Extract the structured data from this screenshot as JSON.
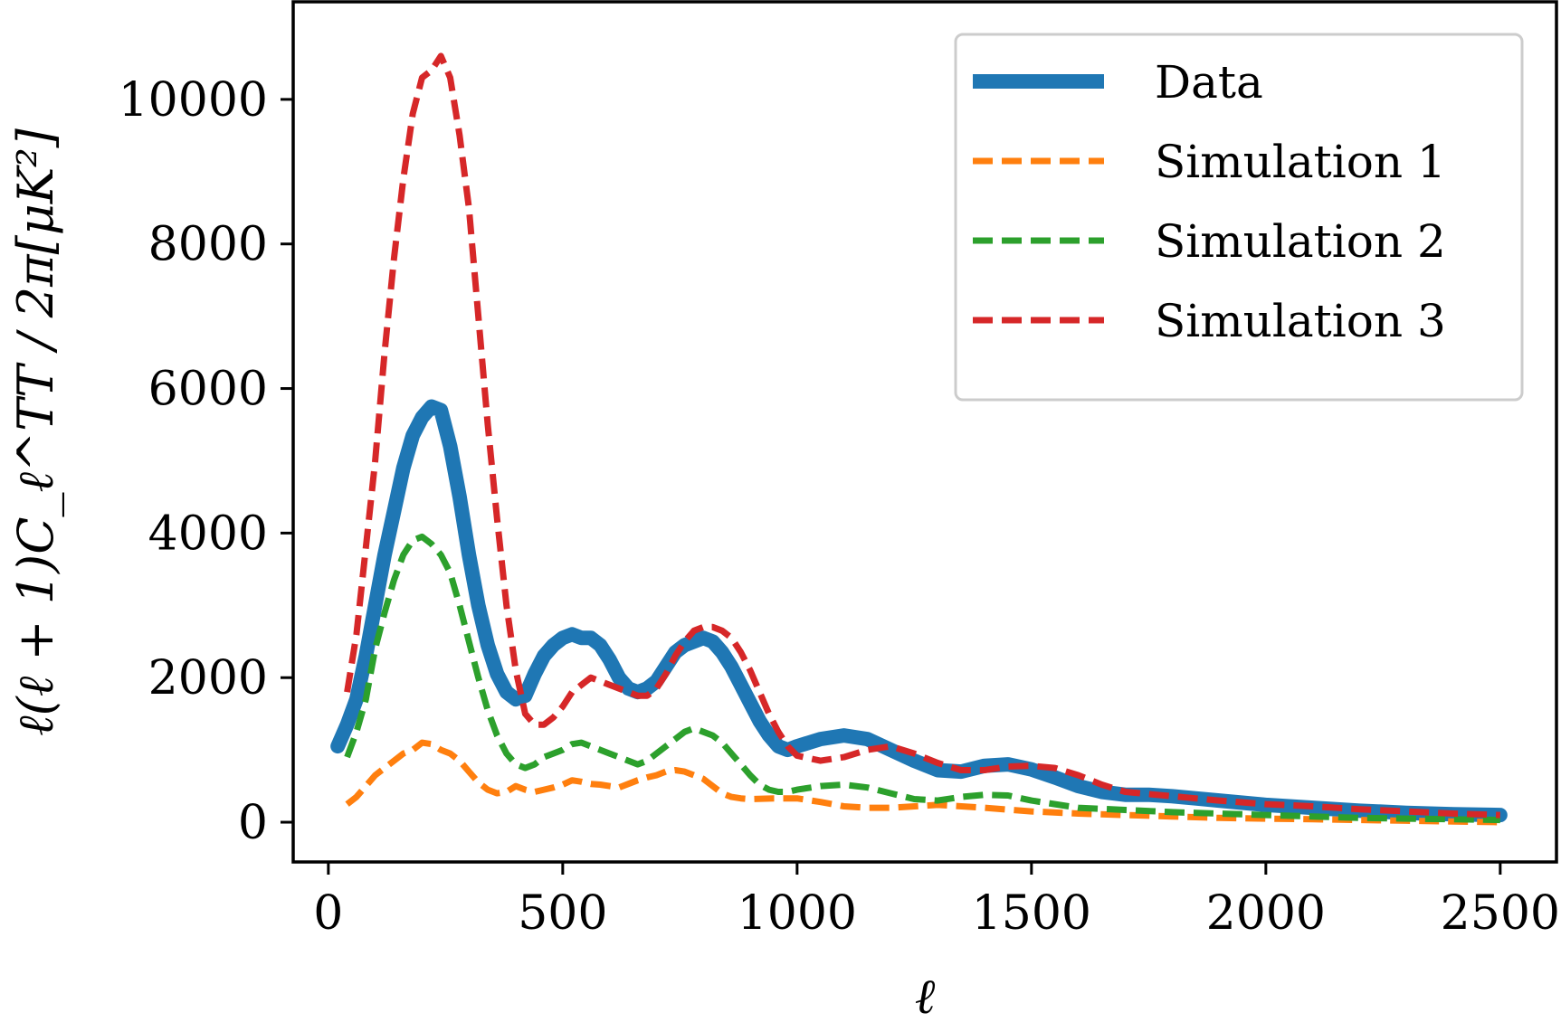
{
  "chart_data": {
    "type": "line",
    "xlabel": "ℓ",
    "ylabel": "ℓ(ℓ + 1)C_ℓ^TT / 2π[μK²]",
    "xlim": [
      -75,
      2620
    ],
    "ylim": [
      -550,
      11350
    ],
    "xticks": [
      0,
      500,
      1000,
      1500,
      2000,
      2500
    ],
    "yticks": [
      0,
      2000,
      4000,
      6000,
      8000,
      10000
    ],
    "xtick_labels": [
      "0",
      "500",
      "1000",
      "1500",
      "2000",
      "2500"
    ],
    "ytick_labels": [
      "0",
      "2000",
      "4000",
      "6000",
      "8000",
      "10000"
    ],
    "grid": false,
    "legend_position": "upper right",
    "series": [
      {
        "name": "Data",
        "style": "solid",
        "color": "#1f77b4",
        "x": [
          20,
          40,
          60,
          80,
          100,
          120,
          140,
          160,
          180,
          200,
          220,
          240,
          260,
          280,
          300,
          320,
          340,
          360,
          380,
          400,
          420,
          440,
          460,
          480,
          500,
          520,
          540,
          560,
          580,
          600,
          620,
          640,
          660,
          680,
          700,
          720,
          740,
          760,
          780,
          800,
          820,
          840,
          860,
          880,
          900,
          920,
          940,
          960,
          980,
          1000,
          1050,
          1100,
          1150,
          1200,
          1250,
          1300,
          1350,
          1400,
          1450,
          1500,
          1550,
          1600,
          1650,
          1700,
          1750,
          1800,
          1850,
          1900,
          1950,
          2000,
          2100,
          2200,
          2300,
          2400,
          2500
        ],
        "values": [
          1050,
          1350,
          1700,
          2300,
          3000,
          3700,
          4300,
          4900,
          5350,
          5600,
          5750,
          5700,
          5200,
          4500,
          3700,
          3000,
          2450,
          2050,
          1800,
          1700,
          1750,
          2050,
          2300,
          2450,
          2550,
          2600,
          2550,
          2550,
          2450,
          2250,
          2000,
          1850,
          1800,
          1850,
          1950,
          2150,
          2350,
          2450,
          2500,
          2550,
          2500,
          2350,
          2150,
          1900,
          1650,
          1400,
          1200,
          1050,
          1000,
          1050,
          1150,
          1200,
          1150,
          1000,
          850,
          720,
          700,
          780,
          800,
          730,
          620,
          500,
          420,
          380,
          380,
          360,
          330,
          300,
          270,
          240,
          200,
          160,
          130,
          110,
          100
        ]
      },
      {
        "name": "Simulation 1",
        "style": "dashed",
        "color": "#ff7f0e",
        "x": [
          40,
          60,
          80,
          100,
          120,
          140,
          160,
          180,
          200,
          220,
          240,
          260,
          280,
          300,
          320,
          340,
          360,
          380,
          400,
          420,
          440,
          460,
          480,
          500,
          520,
          540,
          560,
          580,
          600,
          620,
          640,
          660,
          680,
          700,
          720,
          740,
          760,
          780,
          800,
          820,
          840,
          860,
          880,
          900,
          950,
          1000,
          1050,
          1100,
          1150,
          1200,
          1300,
          1400,
          1500,
          1600,
          1700,
          1800,
          1900,
          2000,
          2100,
          2200,
          2300,
          2400,
          2500
        ],
        "values": [
          250,
          350,
          500,
          650,
          750,
          850,
          950,
          1000,
          1100,
          1080,
          1000,
          950,
          850,
          700,
          550,
          450,
          400,
          420,
          500,
          450,
          420,
          450,
          480,
          520,
          580,
          560,
          530,
          520,
          500,
          480,
          530,
          580,
          620,
          650,
          700,
          720,
          700,
          650,
          600,
          500,
          400,
          350,
          330,
          320,
          330,
          330,
          280,
          220,
          200,
          200,
          240,
          200,
          150,
          120,
          100,
          80,
          60,
          50,
          40,
          30,
          20,
          10,
          0
        ]
      },
      {
        "name": "Simulation 2",
        "style": "dashed",
        "color": "#2ca02c",
        "x": [
          40,
          60,
          80,
          100,
          120,
          140,
          160,
          180,
          200,
          220,
          240,
          260,
          280,
          300,
          320,
          340,
          360,
          380,
          400,
          420,
          440,
          460,
          480,
          500,
          520,
          540,
          560,
          580,
          600,
          620,
          640,
          660,
          680,
          700,
          720,
          740,
          760,
          780,
          800,
          820,
          840,
          860,
          880,
          900,
          920,
          940,
          960,
          980,
          1000,
          1050,
          1100,
          1150,
          1200,
          1250,
          1300,
          1350,
          1400,
          1450,
          1500,
          1600,
          1700,
          1800,
          1900,
          2000,
          2100,
          2200,
          2300,
          2400,
          2500
        ],
        "values": [
          900,
          1250,
          1700,
          2400,
          2900,
          3350,
          3700,
          3900,
          3950,
          3850,
          3700,
          3450,
          3000,
          2500,
          2000,
          1550,
          1200,
          950,
          800,
          750,
          800,
          900,
          950,
          1000,
          1080,
          1100,
          1050,
          1000,
          950,
          900,
          850,
          800,
          850,
          950,
          1050,
          1150,
          1250,
          1300,
          1250,
          1200,
          1100,
          950,
          800,
          650,
          520,
          450,
          420,
          420,
          450,
          500,
          520,
          480,
          400,
          320,
          300,
          350,
          380,
          370,
          300,
          200,
          170,
          140,
          120,
          100,
          80,
          60,
          50,
          40,
          30
        ]
      },
      {
        "name": "Simulation 3",
        "style": "dashed",
        "color": "#d62728",
        "x": [
          40,
          60,
          80,
          100,
          120,
          140,
          160,
          180,
          200,
          220,
          240,
          260,
          280,
          300,
          320,
          340,
          360,
          380,
          400,
          420,
          440,
          460,
          480,
          500,
          520,
          540,
          560,
          580,
          600,
          620,
          640,
          660,
          680,
          700,
          720,
          740,
          760,
          780,
          800,
          820,
          840,
          860,
          880,
          900,
          920,
          940,
          960,
          980,
          1000,
          1050,
          1100,
          1150,
          1200,
          1250,
          1300,
          1350,
          1400,
          1450,
          1500,
          1550,
          1600,
          1650,
          1700,
          1800,
          1900,
          2000,
          2100,
          2200,
          2300,
          2400,
          2500
        ],
        "values": [
          1800,
          2600,
          3800,
          5000,
          6500,
          7800,
          8900,
          9800,
          10300,
          10400,
          10600,
          10300,
          9500,
          8500,
          7000,
          5500,
          4200,
          3000,
          2100,
          1500,
          1350,
          1350,
          1450,
          1600,
          1800,
          1900,
          2000,
          1950,
          1900,
          1850,
          1800,
          1750,
          1750,
          1850,
          2050,
          2300,
          2500,
          2650,
          2700,
          2700,
          2650,
          2550,
          2350,
          2100,
          1800,
          1500,
          1250,
          1050,
          920,
          850,
          900,
          1000,
          1050,
          950,
          820,
          720,
          720,
          770,
          780,
          750,
          650,
          520,
          420,
          360,
          300,
          250,
          220,
          180,
          150,
          120,
          100
        ]
      }
    ]
  }
}
